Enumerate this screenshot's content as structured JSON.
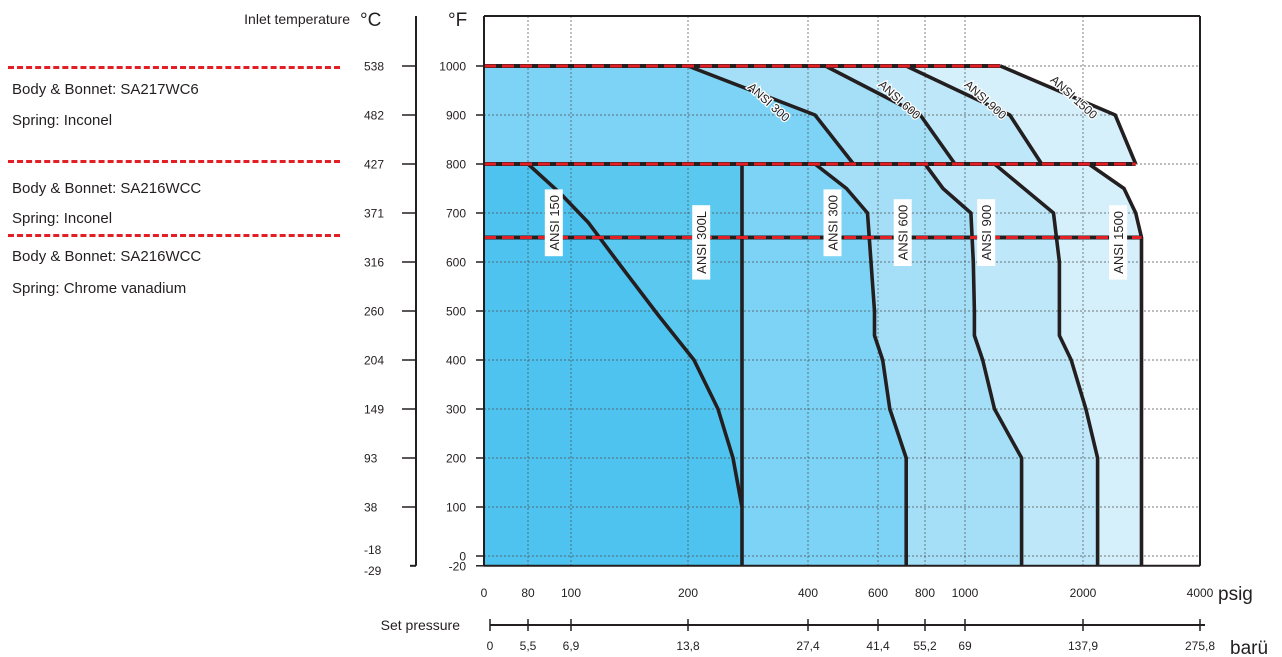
{
  "chart_data": {
    "type": "area",
    "title": "",
    "left_axis": {
      "label": "Inlet temperature",
      "unit_c": "°C",
      "unit_f": "°F",
      "ticks_f": [
        -20,
        0,
        100,
        200,
        300,
        400,
        500,
        600,
        700,
        800,
        900,
        1000
      ],
      "ticks_c": [
        -29,
        -18,
        38,
        93,
        149,
        204,
        260,
        316,
        371,
        427,
        482,
        538
      ],
      "ylim_f": [
        -20,
        1100
      ]
    },
    "x_axis": {
      "unit": "psig",
      "scale": "nonlinear",
      "ticks": [
        0,
        80,
        100,
        200,
        400,
        600,
        800,
        1000,
        2000,
        4000
      ],
      "tick_labels": [
        "0",
        "80",
        "100",
        "200",
        "400",
        "600",
        "800",
        "1000",
        "2000",
        "4000"
      ]
    },
    "bar_axis": {
      "label": "Set pressure",
      "unit": "barü",
      "ticks_psig": [
        0,
        80,
        100,
        200,
        400,
        600,
        800,
        1000,
        2000,
        4000
      ],
      "tick_labels": [
        "0",
        "5,5",
        "6,9",
        "13,8",
        "27,4",
        "41,4",
        "55,2",
        "69",
        "137,9",
        "275,8"
      ]
    },
    "material_limits": [
      {
        "temp_f": 1000,
        "body": "Body & Bonnet: SA217WC6",
        "spring": "Spring: Inconel"
      },
      {
        "temp_f": 800,
        "body": "Body & Bonnet: SA216WCC",
        "spring": "Spring: Inconel"
      },
      {
        "temp_f": 650,
        "body": "Body & Bonnet: SA216WCC",
        "spring": "Spring: Chrome vanadium"
      }
    ],
    "series_lower": [
      {
        "name": "ANSI 150",
        "color": "#4fc3ef",
        "points": [
          [
            80,
            800
          ],
          [
            95,
            740
          ],
          [
            115,
            680
          ],
          [
            140,
            600
          ],
          [
            175,
            490
          ],
          [
            210,
            400
          ],
          [
            250,
            300
          ],
          [
            275,
            200
          ],
          [
            290,
            100
          ]
        ]
      },
      {
        "name": "ANSI 300L",
        "color": "#5bc8f0",
        "points": [
          [
            290,
            800
          ],
          [
            290,
            100
          ],
          [
            290,
            -20
          ]
        ]
      },
      {
        "name": "ANSI 300",
        "color": "#7dd3f5",
        "points": [
          [
            420,
            800
          ],
          [
            510,
            750
          ],
          [
            570,
            700
          ],
          [
            580,
            600
          ],
          [
            590,
            500
          ],
          [
            590,
            450
          ],
          [
            620,
            400
          ],
          [
            650,
            300
          ],
          [
            720,
            200
          ],
          [
            720,
            -20
          ]
        ]
      },
      {
        "name": "ANSI 600",
        "color": "#a5dff7",
        "points": [
          [
            800,
            800
          ],
          [
            890,
            750
          ],
          [
            1050,
            700
          ],
          [
            1070,
            600
          ],
          [
            1080,
            500
          ],
          [
            1080,
            450
          ],
          [
            1150,
            400
          ],
          [
            1250,
            300
          ],
          [
            1480,
            200
          ],
          [
            1480,
            -20
          ]
        ]
      },
      {
        "name": "ANSI 900",
        "color": "#bee8f9",
        "points": [
          [
            1250,
            800
          ],
          [
            1500,
            750
          ],
          [
            1750,
            700
          ],
          [
            1800,
            600
          ],
          [
            1800,
            500
          ],
          [
            1800,
            450
          ],
          [
            1900,
            400
          ],
          [
            2050,
            300
          ],
          [
            2250,
            200
          ],
          [
            2250,
            -20
          ]
        ]
      },
      {
        "name": "ANSI 1500",
        "color": "#d6f0fb",
        "points": [
          [
            2100,
            800
          ],
          [
            2700,
            750
          ],
          [
            2900,
            700
          ],
          [
            3000,
            650
          ],
          [
            3000,
            -20
          ]
        ]
      }
    ],
    "series_upper": [
      {
        "name": "ANSI 300",
        "points": [
          [
            200,
            1000
          ],
          [
            420,
            900
          ],
          [
            530,
            800
          ]
        ]
      },
      {
        "name": "ANSI 600",
        "points": [
          [
            450,
            1000
          ],
          [
            780,
            900
          ],
          [
            950,
            800
          ]
        ]
      },
      {
        "name": "ANSI 900",
        "points": [
          [
            720,
            1000
          ],
          [
            1380,
            900
          ],
          [
            1650,
            800
          ]
        ]
      },
      {
        "name": "ANSI 1500",
        "points": [
          [
            1300,
            1000
          ],
          [
            2550,
            900
          ],
          [
            2900,
            800
          ]
        ]
      }
    ],
    "grid": true
  }
}
